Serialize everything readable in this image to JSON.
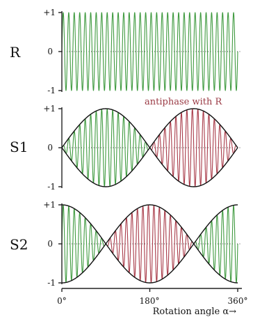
{
  "colors": {
    "in_phase": "#3f9a3f",
    "antiphase": "#a83a48",
    "envelope": "#111111",
    "annotation": "#9a3a44"
  },
  "chart_data": {
    "type": "line",
    "carrier_cycles": 32,
    "x_ticks": [
      "0°",
      "180°",
      "360°"
    ],
    "xlabel": "Rotation angle α→",
    "annotation": "antiphase with R",
    "xlim": [
      0,
      360
    ],
    "ylim": [
      -1,
      1
    ],
    "panels": [
      {
        "name": "R",
        "label": "R",
        "y_ticks": [
          "+1",
          "0",
          "-1"
        ],
        "envelope": "constant",
        "amplitude": 1
      },
      {
        "name": "S1",
        "label": "S1",
        "y_ticks": [
          "+1",
          "0",
          "-1"
        ],
        "envelope": "sine"
      },
      {
        "name": "S2",
        "label": "S2",
        "y_ticks": [
          "+1",
          "0",
          "-1"
        ],
        "envelope": "cosine"
      }
    ]
  }
}
